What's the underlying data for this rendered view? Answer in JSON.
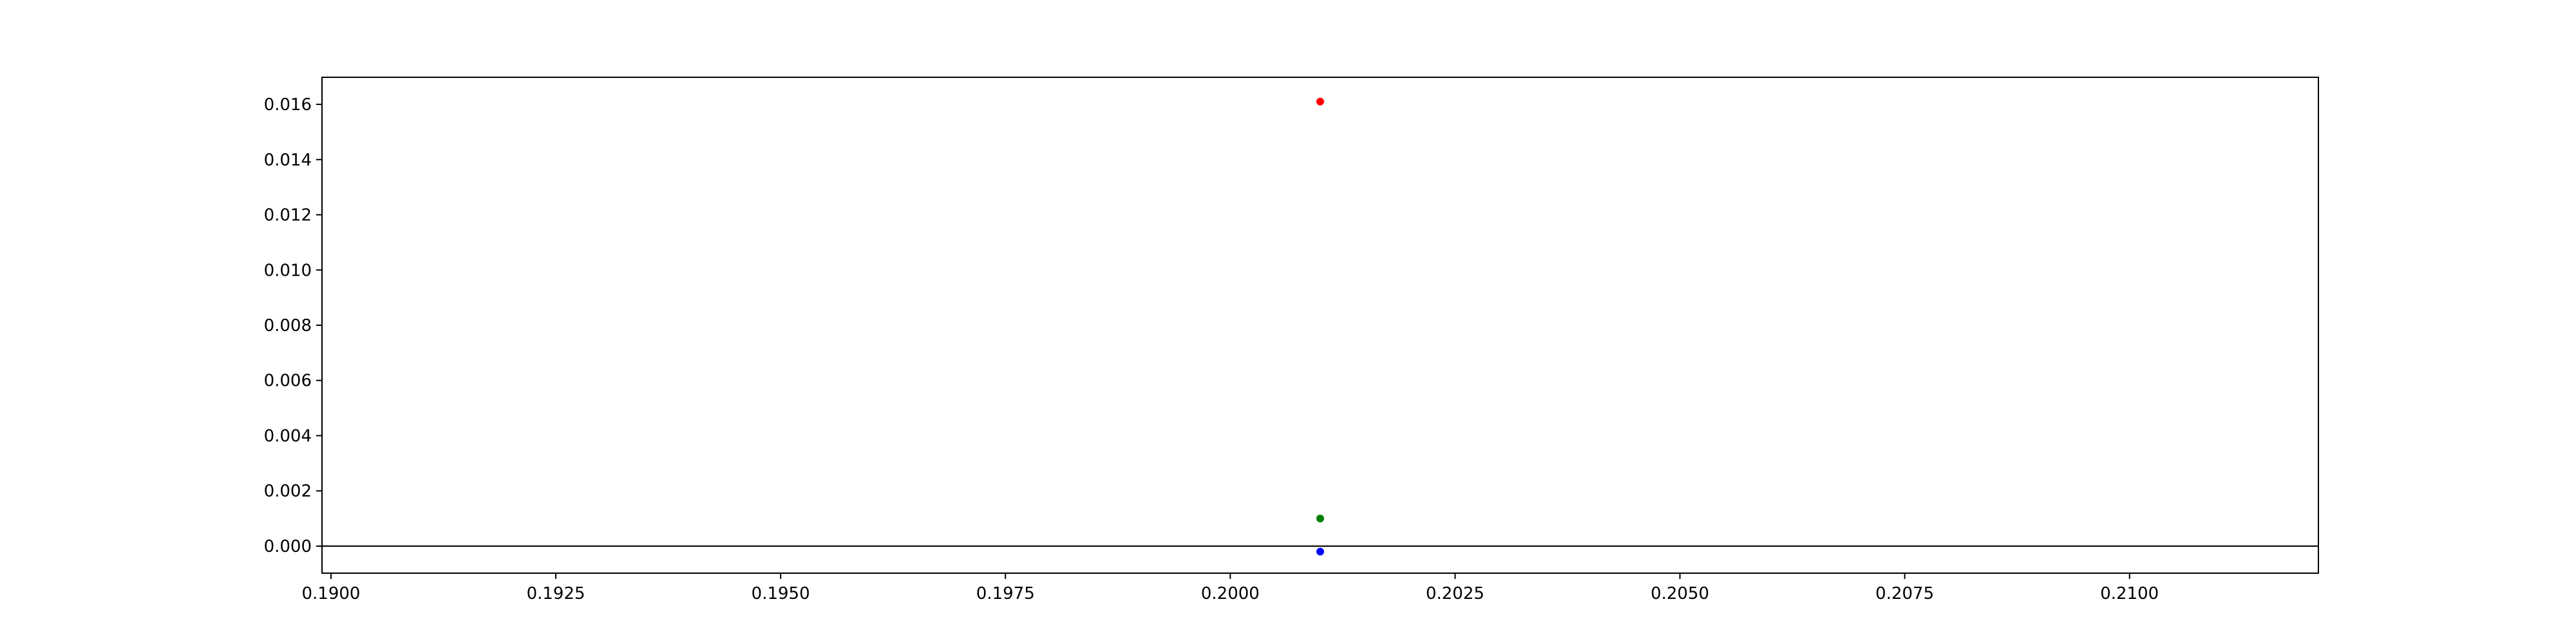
{
  "chart_data": {
    "type": "scatter",
    "title": "",
    "xlabel": "",
    "ylabel": "",
    "xlim": [
      0.1899,
      0.2121
    ],
    "ylim": [
      -0.00098,
      0.01698
    ],
    "xticks": [
      "0.1900",
      "0.1925",
      "0.1950",
      "0.1975",
      "0.2000",
      "0.2025",
      "0.2050",
      "0.2075",
      "0.2100"
    ],
    "yticks": [
      "0.000",
      "0.002",
      "0.004",
      "0.006",
      "0.008",
      "0.010",
      "0.012",
      "0.014",
      "0.016"
    ],
    "grid": false,
    "legend": "none",
    "reference_line": {
      "y": 0.0,
      "color": "#000000"
    },
    "series": [
      {
        "color": "#ff0000",
        "points": [
          {
            "x": 0.201,
            "y": 0.0161
          }
        ]
      },
      {
        "color": "#008000",
        "points": [
          {
            "x": 0.201,
            "y": 0.001
          }
        ]
      },
      {
        "color": "#0000ff",
        "points": [
          {
            "x": 0.201,
            "y": -0.0002
          }
        ]
      }
    ]
  }
}
